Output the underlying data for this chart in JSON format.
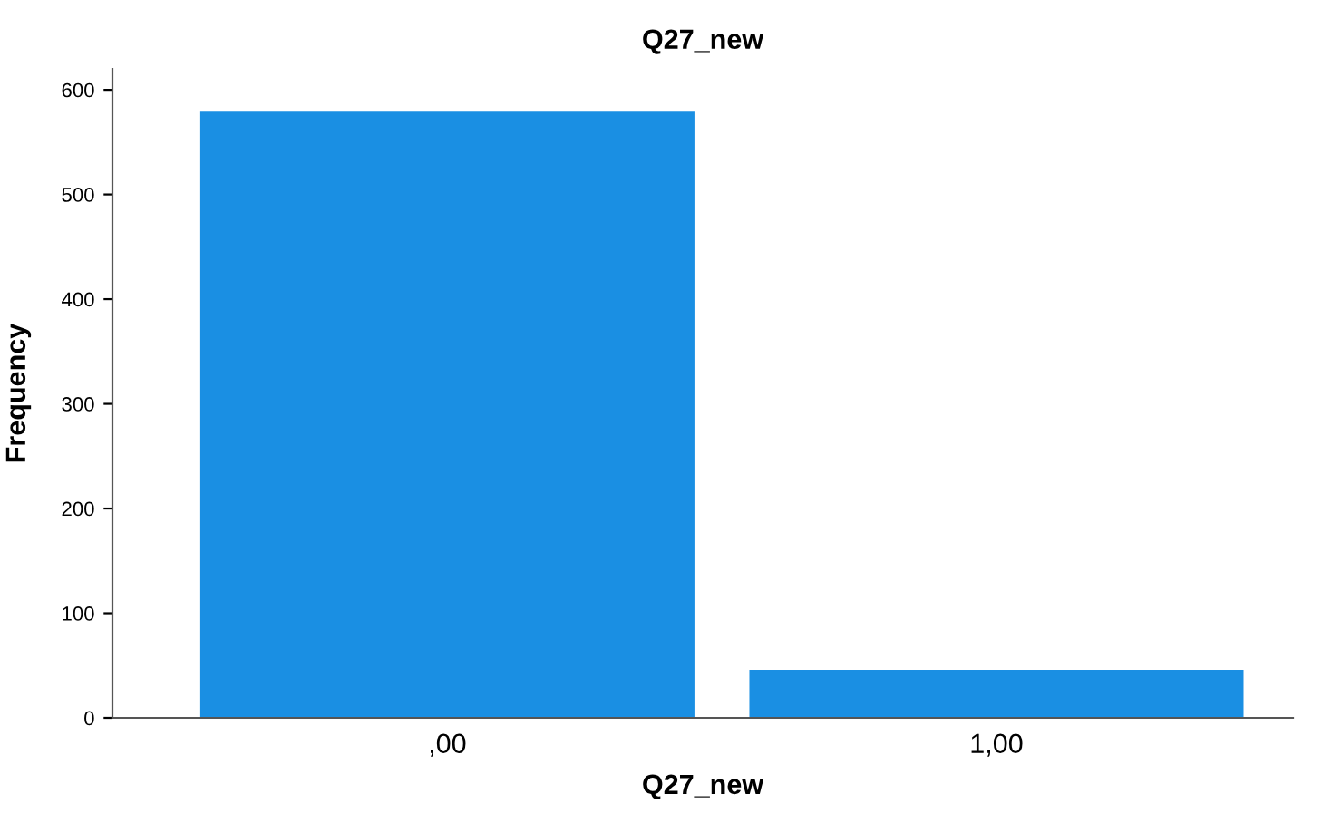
{
  "chart_data": {
    "type": "bar",
    "title": "Q27_new",
    "xlabel": "Q27_new",
    "ylabel": "Frequency",
    "categories": [
      ",00",
      "1,00"
    ],
    "values": [
      579,
      46
    ],
    "color": "#1a8fe3",
    "ylim": [
      0,
      620
    ],
    "yticks": [
      0,
      100,
      200,
      300,
      400,
      500,
      600
    ],
    "grid": false,
    "legend": false
  }
}
